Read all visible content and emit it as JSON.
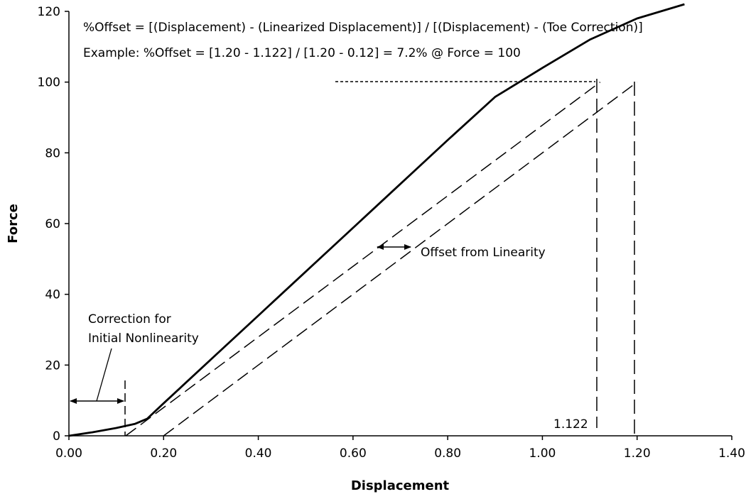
{
  "chart_data": {
    "type": "line",
    "xlabel": "Displacement",
    "ylabel": "Force",
    "xlim": [
      0,
      1.4
    ],
    "ylim": [
      0,
      120
    ],
    "x_ticks": [
      "0.00",
      "0.20",
      "0.40",
      "0.60",
      "0.80",
      "1.00",
      "1.20",
      "1.40"
    ],
    "y_ticks": [
      "0",
      "20",
      "40",
      "60",
      "80",
      "100",
      "120"
    ],
    "grid": false,
    "series": [
      {
        "style": "solid",
        "points": [
          [
            0.0,
            0
          ],
          [
            0.05,
            1
          ],
          [
            0.1,
            2.2
          ],
          [
            0.14,
            3.4
          ],
          [
            0.165,
            4.8
          ],
          [
            0.2,
            9.2
          ],
          [
            0.3,
            21.6
          ],
          [
            0.4,
            34.0
          ],
          [
            0.5,
            46.4
          ],
          [
            0.6,
            58.8
          ],
          [
            0.7,
            71.2
          ],
          [
            0.8,
            83.6
          ],
          [
            0.9,
            95.8
          ],
          [
            1.0,
            104.0
          ],
          [
            1.1,
            112.0
          ],
          [
            1.2,
            118.0
          ],
          [
            1.3,
            122.0
          ]
        ]
      },
      {
        "style": "dashed",
        "points": [
          [
            0.12,
            0
          ],
          [
            1.122,
            100
          ]
        ]
      },
      {
        "style": "dashed",
        "points": [
          [
            0.2,
            0
          ],
          [
            1.2,
            100
          ]
        ]
      }
    ],
    "annotations": {
      "formula": "%Offset = [(Displacement) - (Linearized Displacement)] / [(Displacement) - (Toe Correction)]",
      "example": "Example: %Offset = [1.20 - 1.122] / [1.20 - 0.12] = 7.2% @ Force = 100",
      "offset_label": "Offset from Linearity",
      "correction_label_line1": "Correction for",
      "correction_label_line2": "Initial Nonlinearity",
      "marker_value_label": "1.122"
    }
  }
}
